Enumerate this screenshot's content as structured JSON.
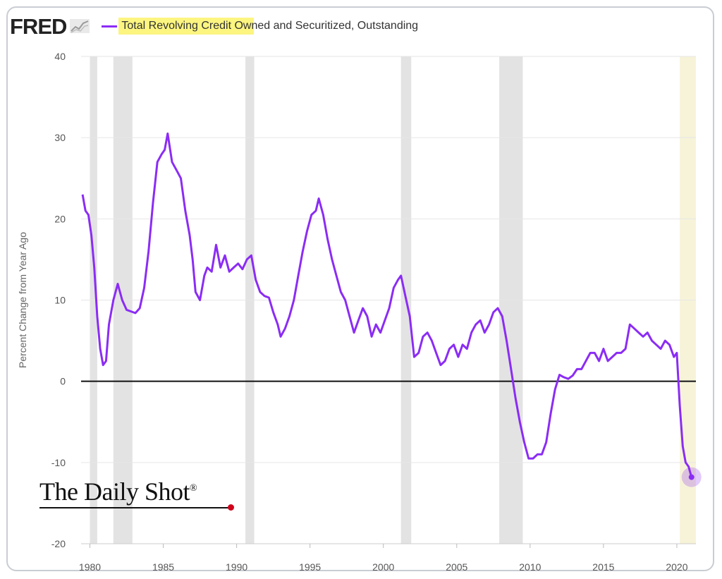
{
  "header": {
    "logo_text": "FRED",
    "series_label": "Total Revolving Credit Owned and Securitized, Outstanding"
  },
  "watermark": {
    "text": "The Daily Shot",
    "mark": "®"
  },
  "colors": {
    "line": "#8b2cf5",
    "recession": "#e3e3e3",
    "forecast_band": "#f7f3d9",
    "zero_line": "#111111",
    "highlight": "#fbf36a"
  },
  "chart_data": {
    "type": "line",
    "title": "Total Revolving Credit Owned and Securitized, Outstanding",
    "xlabel": "",
    "ylabel": "Percent Change from Year Ago",
    "xlim": [
      1979.4,
      2021.3
    ],
    "ylim": [
      -20,
      40
    ],
    "x_ticks": [
      "1980",
      "1985",
      "1990",
      "1995",
      "2000",
      "2005",
      "2010",
      "2015",
      "2020"
    ],
    "y_ticks": [
      "40",
      "30",
      "20",
      "10",
      "0",
      "-10",
      "-20"
    ],
    "recessions": [
      [
        1980.0,
        1980.5
      ],
      [
        1981.6,
        1982.9
      ],
      [
        1990.6,
        1991.2
      ],
      [
        2001.2,
        2001.9
      ],
      [
        2007.9,
        2009.5
      ]
    ],
    "highlight_band": [
      2020.2,
      2021.3
    ],
    "series": [
      {
        "name": "Total Revolving Credit Owned and Securitized, Outstanding",
        "x": [
          1979.5,
          1979.7,
          1979.9,
          1980.1,
          1980.3,
          1980.5,
          1980.7,
          1980.9,
          1981.1,
          1981.3,
          1981.6,
          1981.9,
          1982.2,
          1982.5,
          1982.8,
          1983.1,
          1983.4,
          1983.7,
          1984.0,
          1984.3,
          1984.6,
          1984.9,
          1985.1,
          1985.3,
          1985.6,
          1985.9,
          1986.2,
          1986.5,
          1986.8,
          1987.0,
          1987.2,
          1987.5,
          1987.8,
          1988.0,
          1988.3,
          1988.6,
          1988.9,
          1989.2,
          1989.5,
          1989.8,
          1990.1,
          1990.4,
          1990.7,
          1991.0,
          1991.3,
          1991.6,
          1991.9,
          1992.2,
          1992.5,
          1992.8,
          1993.0,
          1993.3,
          1993.6,
          1993.9,
          1994.2,
          1994.5,
          1994.8,
          1995.1,
          1995.4,
          1995.6,
          1995.9,
          1996.2,
          1996.5,
          1996.8,
          1997.1,
          1997.4,
          1997.7,
          1998.0,
          1998.3,
          1998.6,
          1998.9,
          1999.2,
          1999.5,
          1999.8,
          2000.1,
          2000.4,
          2000.7,
          2001.0,
          2001.2,
          2001.5,
          2001.8,
          2002.1,
          2002.4,
          2002.7,
          2003.0,
          2003.3,
          2003.6,
          2003.9,
          2004.2,
          2004.5,
          2004.8,
          2005.1,
          2005.4,
          2005.7,
          2006.0,
          2006.3,
          2006.6,
          2006.9,
          2007.2,
          2007.5,
          2007.8,
          2008.1,
          2008.4,
          2008.7,
          2009.0,
          2009.3,
          2009.6,
          2009.9,
          2010.2,
          2010.5,
          2010.8,
          2011.1,
          2011.4,
          2011.7,
          2012.0,
          2012.3,
          2012.6,
          2012.9,
          2013.2,
          2013.5,
          2013.8,
          2014.1,
          2014.4,
          2014.7,
          2015.0,
          2015.3,
          2015.6,
          2015.9,
          2016.2,
          2016.5,
          2016.8,
          2017.1,
          2017.4,
          2017.7,
          2018.0,
          2018.3,
          2018.6,
          2018.9,
          2019.2,
          2019.5,
          2019.8,
          2020.0,
          2020.2,
          2020.4,
          2020.6,
          2020.8,
          2021.0
        ],
        "values": [
          23.0,
          21.0,
          20.5,
          18.0,
          14.0,
          8.0,
          4.0,
          2.0,
          2.5,
          7.0,
          10.0,
          12.0,
          10.0,
          8.8,
          8.6,
          8.4,
          9.0,
          11.5,
          16.0,
          22.0,
          27.0,
          28.0,
          28.5,
          30.5,
          27.0,
          26.0,
          25.0,
          21.0,
          18.0,
          15.0,
          11.0,
          10.0,
          13.0,
          14.0,
          13.5,
          16.8,
          14.0,
          15.5,
          13.5,
          14.0,
          14.5,
          13.8,
          15.0,
          15.5,
          12.5,
          11.0,
          10.5,
          10.3,
          8.5,
          7.0,
          5.5,
          6.5,
          8.0,
          10.0,
          13.0,
          16.0,
          18.5,
          20.5,
          21.0,
          22.5,
          20.5,
          17.5,
          15.0,
          13.0,
          11.0,
          10.0,
          8.0,
          6.0,
          7.5,
          9.0,
          8.0,
          5.5,
          7.0,
          6.0,
          7.5,
          9.0,
          11.5,
          12.5,
          13.0,
          10.5,
          8.0,
          3.0,
          3.5,
          5.5,
          6.0,
          5.0,
          3.5,
          2.0,
          2.5,
          4.0,
          4.5,
          3.0,
          4.5,
          4.0,
          6.0,
          7.0,
          7.5,
          6.0,
          7.0,
          8.5,
          9.0,
          8.0,
          5.0,
          1.5,
          -2.0,
          -5.0,
          -7.5,
          -9.5,
          -9.5,
          -9.0,
          -9.0,
          -7.5,
          -4.0,
          -1.0,
          0.8,
          0.5,
          0.3,
          0.7,
          1.5,
          1.5,
          2.5,
          3.5,
          3.5,
          2.5,
          4.0,
          2.5,
          3.0,
          3.5,
          3.5,
          4.0,
          7.0,
          6.5,
          6.0,
          5.5,
          6.0,
          5.0,
          4.5,
          4.0,
          5.0,
          4.5,
          3.0,
          3.5,
          -3.0,
          -8.0,
          -10.0,
          -10.5,
          -11.8
        ]
      }
    ],
    "last_point": {
      "x": 2021.0,
      "value": -11.8
    }
  }
}
